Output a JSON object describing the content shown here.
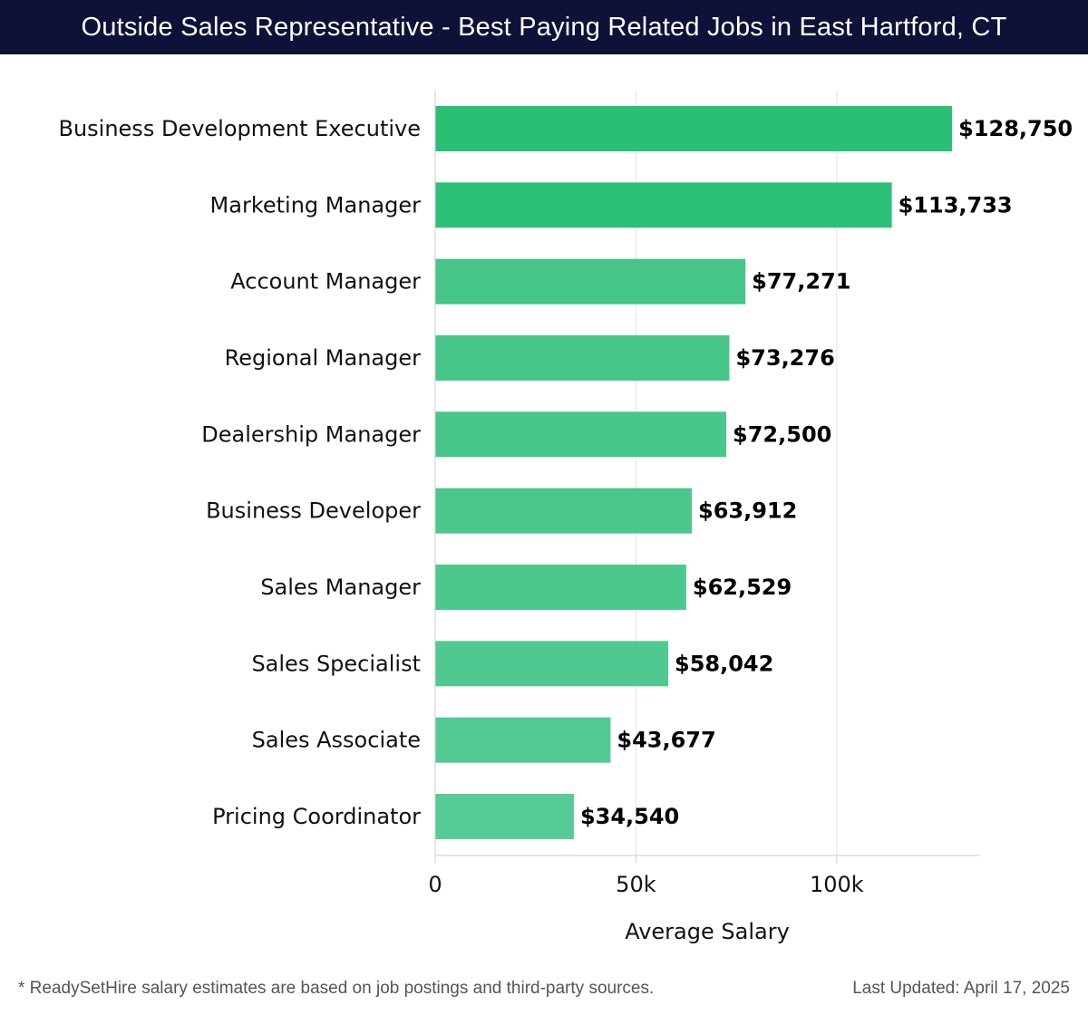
{
  "header": {
    "title": "Outside Sales Representative - Best Paying Related Jobs in East Hartford, CT"
  },
  "footer": {
    "note": "* ReadySetHire salary estimates are based on job postings and third-party sources.",
    "updated": "Last Updated: April 17, 2025"
  },
  "colors": {
    "header_bg": "#0e1238",
    "bar_colors": [
      "#2bbf76",
      "#2dc079",
      "#45c587",
      "#46c688",
      "#47c689",
      "#4cc78c",
      "#4dc88d",
      "#4fc98f",
      "#54ca93",
      "#57cb95"
    ],
    "grid": "#e3e3e3",
    "axis": "#cccccc"
  },
  "chart_data": {
    "type": "bar",
    "orientation": "horizontal",
    "title": "Outside Sales Representative - Best Paying Related Jobs in East Hartford, CT",
    "categories": [
      "Business Development Executive",
      "Marketing Manager",
      "Account Manager",
      "Regional Manager",
      "Dealership Manager",
      "Business Developer",
      "Sales Manager",
      "Sales Specialist",
      "Sales Associate",
      "Pricing Coordinator"
    ],
    "values": [
      128750,
      113733,
      77271,
      73276,
      72500,
      63912,
      62529,
      58042,
      43677,
      34540
    ],
    "value_labels": [
      "$128,750",
      "$113,733",
      "$77,271",
      "$73,276",
      "$72,500",
      "$63,912",
      "$62,529",
      "$58,042",
      "$43,677",
      "$34,540"
    ],
    "xlabel": "Average Salary",
    "ylabel": "",
    "xlim": [
      0,
      135500
    ],
    "xticks": [
      0,
      50000,
      100000
    ],
    "xtick_labels": [
      "0",
      "50k",
      "100k"
    ],
    "grid": true,
    "legend": "none"
  }
}
